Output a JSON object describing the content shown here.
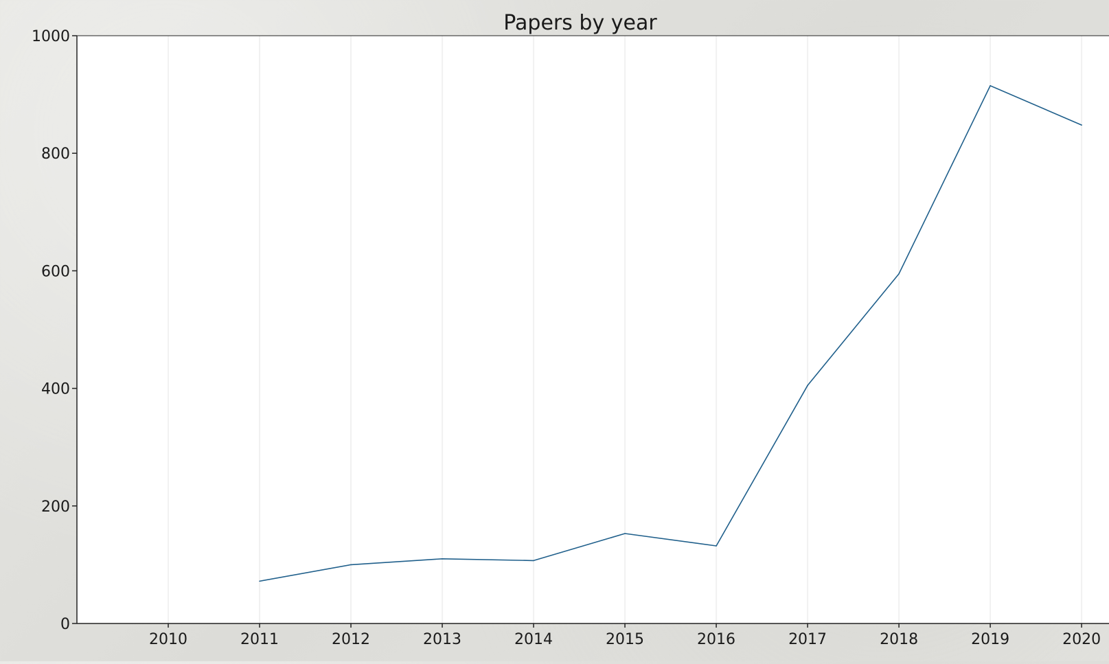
{
  "chart_data": {
    "type": "line",
    "title": "Papers by year",
    "xlabel": "",
    "ylabel": "",
    "x": [
      2011,
      2012,
      2013,
      2014,
      2015,
      2016,
      2017,
      2018,
      2019,
      2020
    ],
    "series": [
      {
        "values": [
          72,
          100,
          110,
          107,
          153,
          132,
          405,
          595,
          915,
          848
        ],
        "color": "#1f5f8b"
      }
    ],
    "xticks": [
      "2010",
      "2011",
      "2012",
      "2013",
      "2014",
      "2015",
      "2016",
      "2017",
      "2018",
      "2019",
      "2020"
    ],
    "yticks": [
      "0",
      "200",
      "400",
      "600",
      "800",
      "1000"
    ],
    "xlim": [
      2009,
      2020.3
    ],
    "ylim": [
      0,
      1000
    ],
    "grid": "vertical",
    "legend": "none"
  }
}
